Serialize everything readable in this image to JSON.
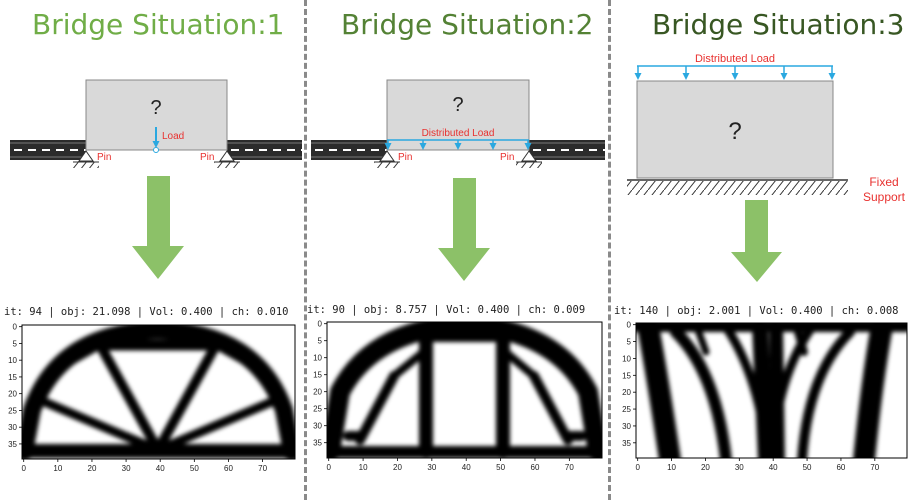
{
  "colors": {
    "title_col1": "#70ad47",
    "title_col2": "#548235",
    "title_col3": "#385723",
    "load_label": "#e8312f",
    "load_arrow": "#2aa8e0",
    "domain_fill": "#d9d9d9",
    "arrow_fill": "#8cc168",
    "divider": "#8a8a8a"
  },
  "columns": [
    {
      "title": "Bridge Situation:1",
      "question": "?",
      "load_label": "Load",
      "left_support_label": "Pin",
      "right_support_label": "Pin",
      "iteration_text": "it: 94 | obj: 21.098 | Vol: 0.400 | ch: 0.010",
      "x_ticks": [
        "0",
        "10",
        "20",
        "30",
        "40",
        "50",
        "60",
        "70"
      ],
      "y_ticks": [
        "0",
        "5",
        "10",
        "15",
        "20",
        "25",
        "30",
        "35"
      ]
    },
    {
      "title": "Bridge Situation:2",
      "question": "?",
      "load_label": "Distributed Load",
      "left_support_label": "Pin",
      "right_support_label": "Pin",
      "iteration_text": "it: 90 | obj: 8.757 | Vol: 0.400 | ch: 0.009",
      "x_ticks": [
        "0",
        "10",
        "20",
        "30",
        "40",
        "50",
        "60",
        "70"
      ],
      "y_ticks": [
        "0",
        "5",
        "10",
        "15",
        "20",
        "25",
        "30",
        "35"
      ]
    },
    {
      "title": "Bridge Situation:3",
      "question": "?",
      "load_label": "Distributed Load",
      "support_label_line1": "Fixed",
      "support_label_line2": "Support",
      "iteration_text": "it: 140 | obj: 2.001 | Vol: 0.400 | ch: 0.008",
      "x_ticks": [
        "0",
        "10",
        "20",
        "30",
        "40",
        "50",
        "60",
        "70"
      ],
      "y_ticks": [
        "0",
        "5",
        "10",
        "15",
        "20",
        "25",
        "30",
        "35"
      ]
    }
  ]
}
